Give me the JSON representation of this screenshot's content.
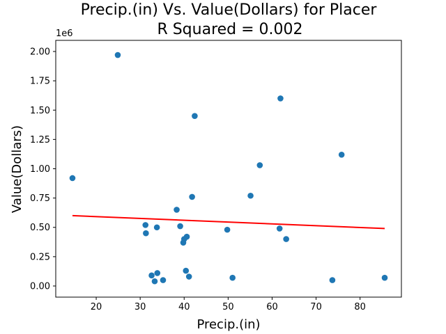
{
  "chart_data": {
    "type": "scatter",
    "title_line1": "Precip.(in) Vs. Value(Dollars) for Placer",
    "title_line2": "R Squared =  0.002",
    "xlabel": "Precip.(in)",
    "ylabel": "Value(Dollars)",
    "y_offset_label": "1e6",
    "xlim": [
      10.8,
      89.4
    ],
    "ylim": [
      -0.095,
      2.095
    ],
    "x_ticks": [
      20,
      30,
      40,
      50,
      60,
      70,
      80
    ],
    "x_tick_labels": [
      "20",
      "30",
      "40",
      "50",
      "60",
      "70",
      "80"
    ],
    "y_ticks": [
      0.0,
      0.25,
      0.5,
      0.75,
      1.0,
      1.25,
      1.5,
      1.75,
      2.0
    ],
    "y_tick_labels": [
      "0.00",
      "0.25",
      "0.50",
      "0.75",
      "1.00",
      "1.25",
      "1.50",
      "1.75",
      "2.00"
    ],
    "point_color": "#1f77b4",
    "line_color": "#ff0000",
    "points": [
      {
        "x": 14.6,
        "y": 0.92
      },
      {
        "x": 24.9,
        "y": 1.97
      },
      {
        "x": 31.2,
        "y": 0.52
      },
      {
        "x": 31.3,
        "y": 0.45
      },
      {
        "x": 32.6,
        "y": 0.09
      },
      {
        "x": 33.3,
        "y": 0.04
      },
      {
        "x": 33.8,
        "y": 0.5
      },
      {
        "x": 33.9,
        "y": 0.11
      },
      {
        "x": 35.2,
        "y": 0.05
      },
      {
        "x": 38.3,
        "y": 0.65
      },
      {
        "x": 39.1,
        "y": 0.51
      },
      {
        "x": 39.8,
        "y": 0.37
      },
      {
        "x": 40.0,
        "y": 0.4
      },
      {
        "x": 40.4,
        "y": 0.13
      },
      {
        "x": 40.6,
        "y": 0.42
      },
      {
        "x": 41.1,
        "y": 0.08
      },
      {
        "x": 41.8,
        "y": 0.76
      },
      {
        "x": 42.4,
        "y": 1.45
      },
      {
        "x": 49.8,
        "y": 0.48
      },
      {
        "x": 51.0,
        "y": 0.07
      },
      {
        "x": 55.1,
        "y": 0.77
      },
      {
        "x": 57.2,
        "y": 1.03
      },
      {
        "x": 61.7,
        "y": 0.49
      },
      {
        "x": 61.9,
        "y": 1.6
      },
      {
        "x": 63.2,
        "y": 0.4
      },
      {
        "x": 73.7,
        "y": 0.05
      },
      {
        "x": 75.8,
        "y": 1.12
      },
      {
        "x": 85.6,
        "y": 0.07
      }
    ],
    "trend_line": {
      "x": [
        14.6,
        85.6
      ],
      "y": [
        0.6,
        0.49
      ]
    }
  }
}
